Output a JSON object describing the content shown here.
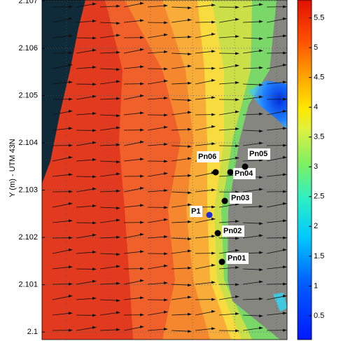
{
  "chart_data": {
    "type": "map",
    "ylabel": "Y (m) - UTM 43N",
    "ylim": [
      2.09984,
      2.10702
    ],
    "yticks": [
      2.1,
      2.101,
      2.102,
      2.103,
      2.104,
      2.105,
      2.106,
      2.107
    ],
    "colorbar": {
      "lim": [
        0.1,
        5.8
      ],
      "ticks": [
        0.5,
        1,
        1.5,
        2,
        2.5,
        3,
        3.5,
        4,
        4.5,
        5,
        5.5
      ]
    },
    "points": [
      {
        "label": "Pn01"
      },
      {
        "label": "Pn02"
      },
      {
        "label": "Pn03"
      },
      {
        "label": "P1"
      },
      {
        "label": "Pn04"
      },
      {
        "label": "Pn05"
      },
      {
        "label": "Pn06"
      }
    ]
  }
}
